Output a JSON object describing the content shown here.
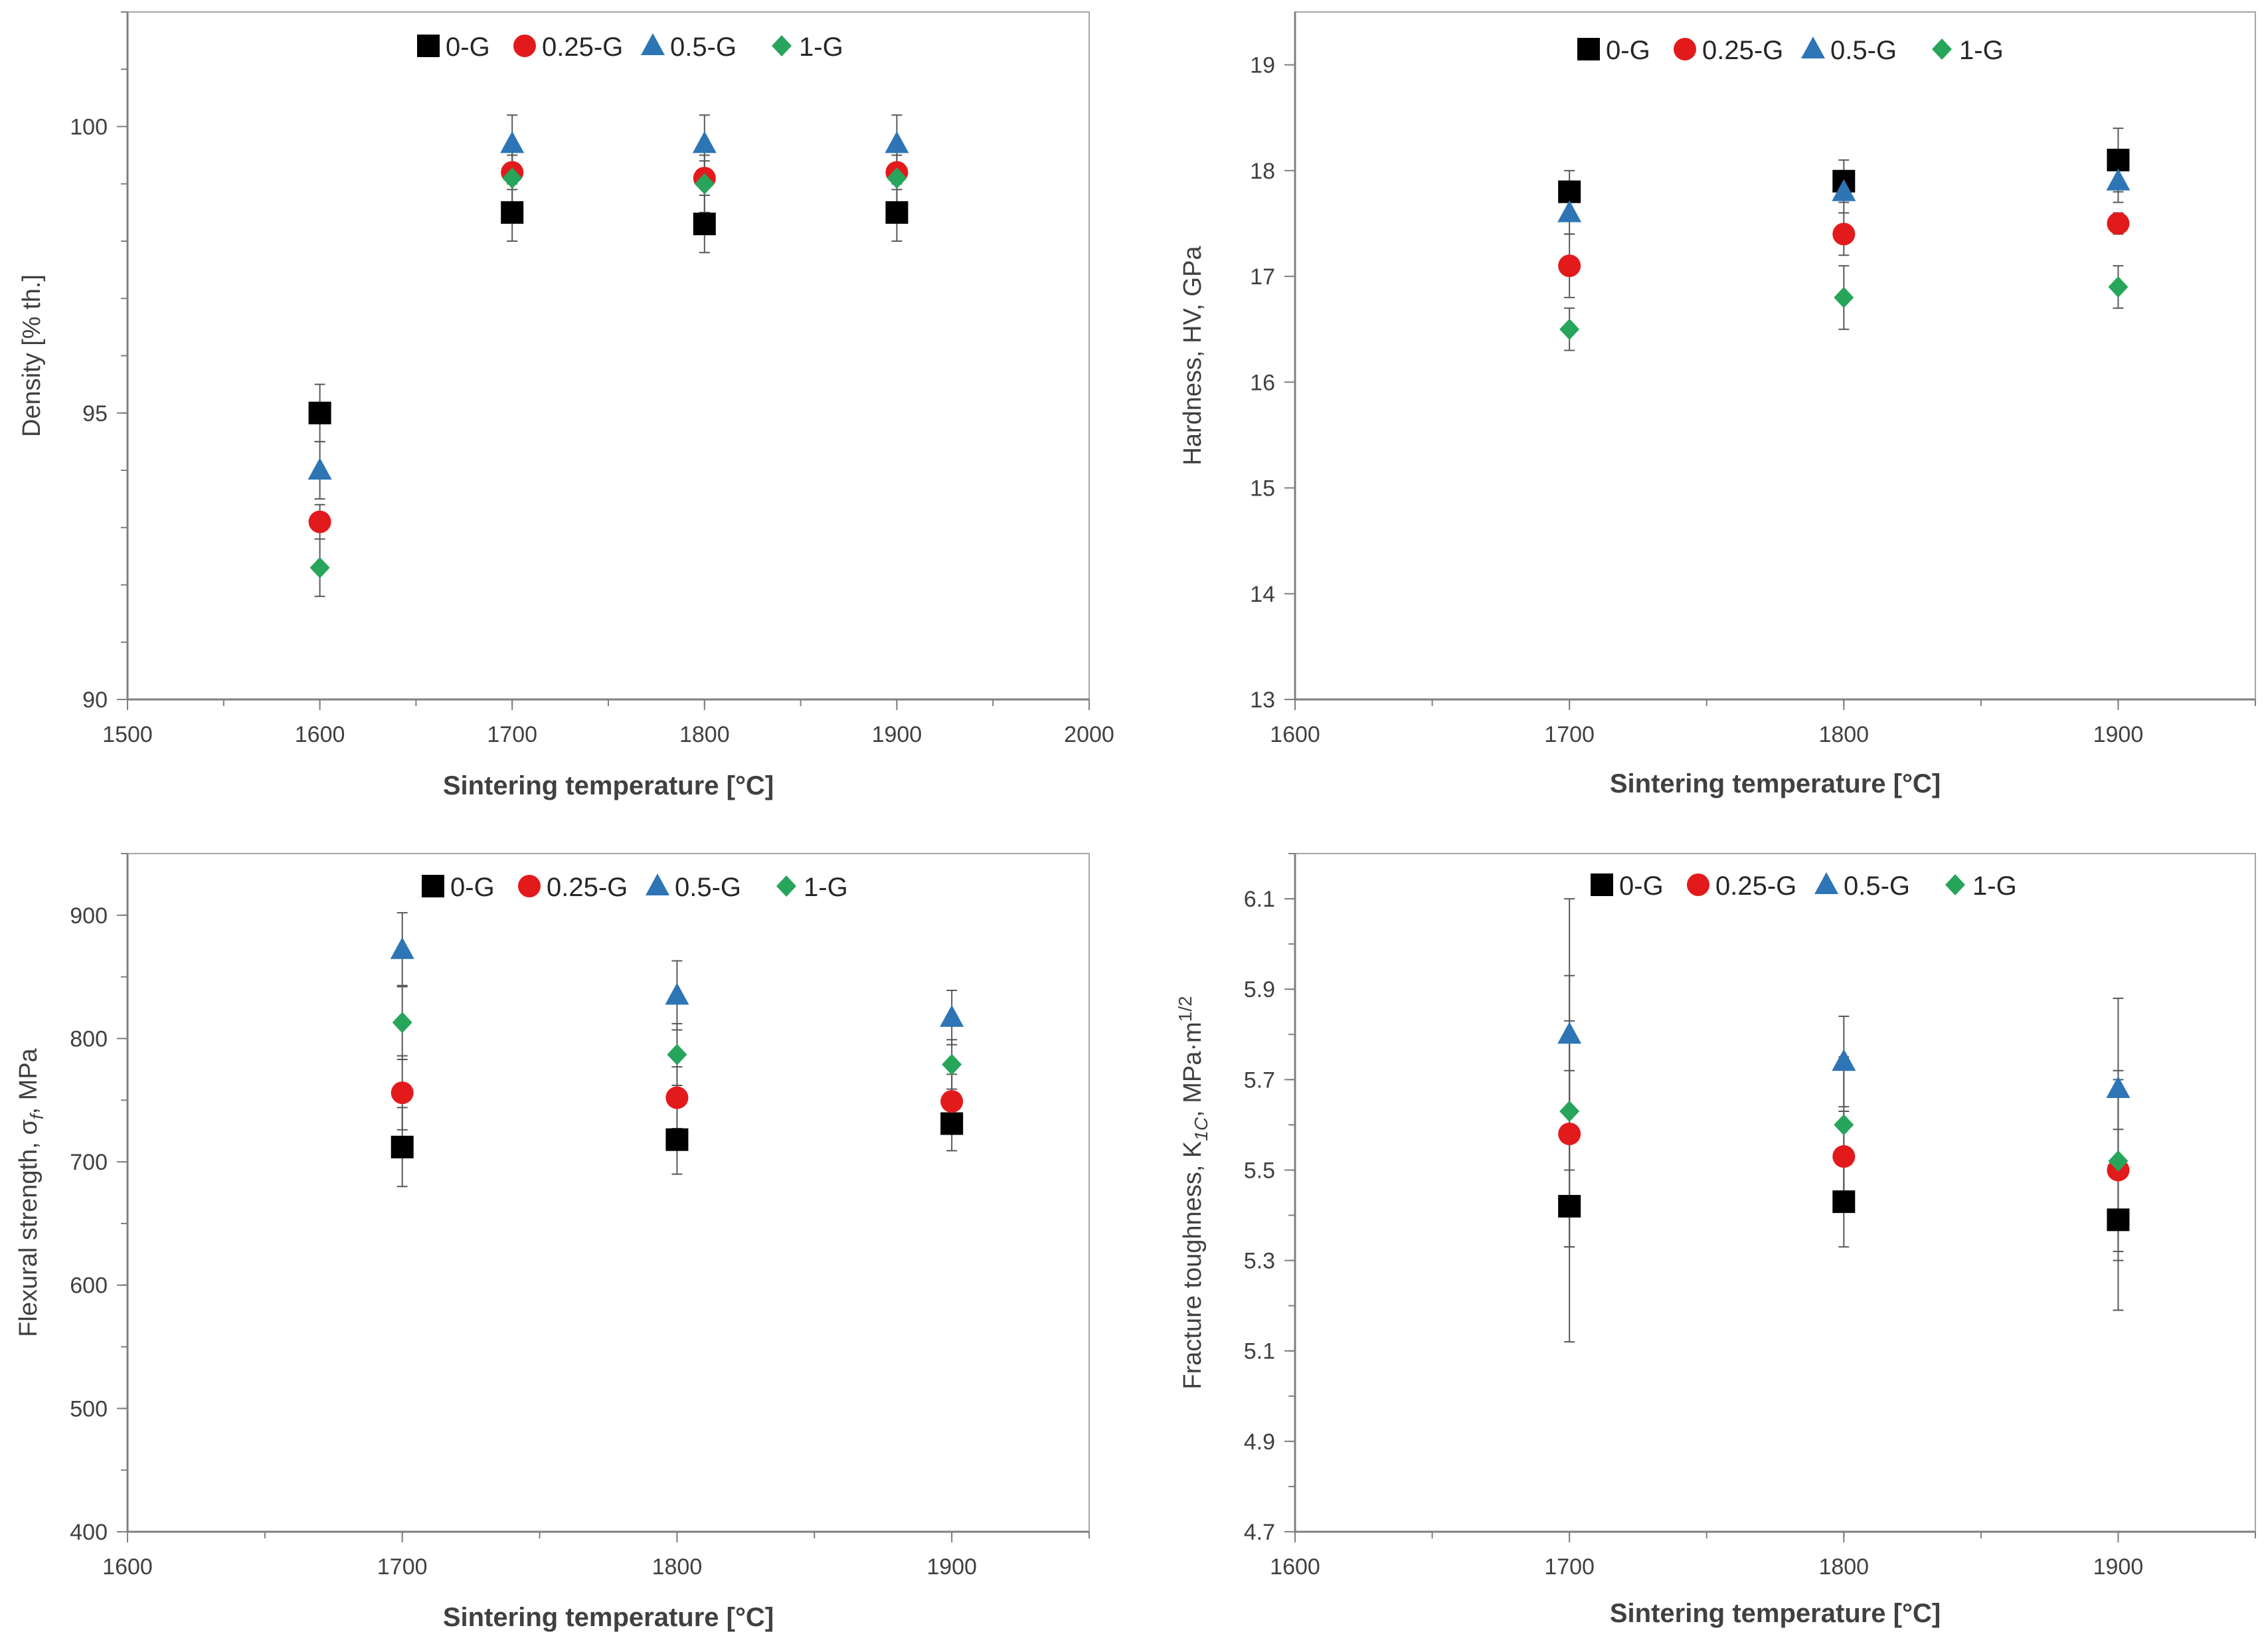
{
  "colors": {
    "0-G": "#000000",
    "0.25-G": "#e31a1c",
    "0.5-G": "#2e75b6",
    "1-G": "#27a55a",
    "axis": "#7f7f7f",
    "error_bar": "#595959"
  },
  "chart_data": [
    {
      "type": "scatter",
      "xlabel": "Sintering temperature [°C]",
      "ylabel": "Density [% th.]",
      "xlim": [
        1500,
        2000
      ],
      "ylim": [
        90,
        102
      ],
      "xticks": [
        1500,
        1600,
        1700,
        1800,
        1900,
        2000
      ],
      "xtick_labels": [
        "1500",
        "1600",
        "1700",
        "1800",
        "1900",
        "2000"
      ],
      "x_minor_step": 50,
      "yticks": [
        90,
        95,
        100
      ],
      "ytick_labels": [
        "90",
        "95",
        "100"
      ],
      "y_minor_step": 1,
      "legend": [
        "0-G",
        "0.25-G",
        "0.5-G",
        "1-G"
      ],
      "legend_position": "top-center",
      "series": [
        {
          "name": "0-G",
          "marker": "square",
          "x": [
            1600,
            1700,
            1800,
            1900
          ],
          "y": [
            95.0,
            98.5,
            98.3,
            98.5
          ],
          "err": [
            0.5,
            0.5,
            0.5,
            0.5
          ]
        },
        {
          "name": "0.25-G",
          "marker": "circle",
          "x": [
            1600,
            1700,
            1800,
            1900
          ],
          "y": [
            93.1,
            99.2,
            99.1,
            99.2
          ],
          "err": [
            0.3,
            0.3,
            0.3,
            0.3
          ]
        },
        {
          "name": "0.5-G",
          "marker": "triangle",
          "x": [
            1600,
            1700,
            1800,
            1900
          ],
          "y": [
            94.0,
            99.7,
            99.7,
            99.7
          ],
          "err": [
            0.5,
            0.5,
            0.5,
            0.5
          ]
        },
        {
          "name": "1-G",
          "marker": "diamond",
          "x": [
            1600,
            1700,
            1800,
            1900
          ],
          "y": [
            92.3,
            99.1,
            99.0,
            99.1
          ],
          "err": [
            0.5,
            0.5,
            0.5,
            0.5
          ]
        }
      ]
    },
    {
      "type": "scatter",
      "xlabel": "Sintering temperature [°C]",
      "ylabel": "Hardness, HV, GPa",
      "xlim": [
        1600,
        1950
      ],
      "ylim": [
        13,
        19.5
      ],
      "xticks": [
        1600,
        1700,
        1800,
        1900
      ],
      "xtick_labels": [
        "1600",
        "1700",
        "1800",
        "1900"
      ],
      "x_minor_step": 50,
      "yticks": [
        13,
        14,
        15,
        16,
        17,
        18,
        19
      ],
      "ytick_labels": [
        "13",
        "14",
        "15",
        "16",
        "17",
        "18",
        "19"
      ],
      "legend": [
        "0-G",
        "0.25-G",
        "0.5-G",
        "1-G"
      ],
      "legend_position": "top-center",
      "series": [
        {
          "name": "0-G",
          "marker": "square",
          "x": [
            1700,
            1800,
            1900
          ],
          "y": [
            17.8,
            17.9,
            18.1
          ],
          "err": [
            0.2,
            0.2,
            0.3
          ]
        },
        {
          "name": "0.25-G",
          "marker": "circle",
          "x": [
            1700,
            1800,
            1900
          ],
          "y": [
            17.1,
            17.4,
            17.5
          ],
          "err": [
            0.3,
            0.2,
            0.1
          ]
        },
        {
          "name": "0.5-G",
          "marker": "triangle",
          "x": [
            1700,
            1800,
            1900
          ],
          "y": [
            17.6,
            17.8,
            17.9
          ],
          "err": [
            0.2,
            0.2,
            0.2
          ]
        },
        {
          "name": "1-G",
          "marker": "diamond",
          "x": [
            1700,
            1800,
            1900
          ],
          "y": [
            16.5,
            16.8,
            16.9
          ],
          "err": [
            0.2,
            0.3,
            0.2
          ]
        }
      ]
    },
    {
      "type": "scatter",
      "xlabel": "Sintering temperature [°C]",
      "ylabel": "Flexural strength, σ",
      "ylabel_sub": "f",
      "ylabel_tail": ", MPa",
      "xlim": [
        1600,
        1950
      ],
      "ylim": [
        400,
        950
      ],
      "xticks": [
        1600,
        1700,
        1800,
        1900
      ],
      "xtick_labels": [
        "1600",
        "1700",
        "1800",
        "1900"
      ],
      "x_minor_step": 50,
      "yticks": [
        400,
        500,
        600,
        700,
        800,
        900
      ],
      "ytick_labels": [
        "400",
        "500",
        "600",
        "700",
        "800",
        "900"
      ],
      "y_minor_step": 50,
      "legend": [
        "0-G",
        "0.25-G",
        "0.5-G",
        "1-G"
      ],
      "legend_position": "top-center",
      "series": [
        {
          "name": "0-G",
          "marker": "square",
          "x": [
            1700,
            1800,
            1900
          ],
          "y": [
            712,
            718,
            731
          ],
          "err": [
            32,
            28,
            22
          ]
        },
        {
          "name": "0.25-G",
          "marker": "circle",
          "x": [
            1700,
            1800,
            1900
          ],
          "y": [
            756,
            752,
            749
          ],
          "err": [
            30,
            25,
            22
          ]
        },
        {
          "name": "0.5-G",
          "marker": "triangle",
          "x": [
            1700,
            1800,
            1900
          ],
          "y": [
            872,
            835,
            817
          ],
          "err": [
            30,
            28,
            22
          ]
        },
        {
          "name": "1-G",
          "marker": "diamond",
          "x": [
            1700,
            1800,
            1900
          ],
          "y": [
            813,
            787,
            779
          ],
          "err": [
            30,
            25,
            20
          ]
        }
      ]
    },
    {
      "type": "scatter",
      "xlabel": "Sintering temperature [°C]",
      "ylabel": "Fracture toughness, K",
      "ylabel_sub": "1C",
      "ylabel_tail": ", MPa·m",
      "ylabel_sup": "1/2",
      "xlim": [
        1600,
        1950
      ],
      "ylim": [
        4.7,
        6.2
      ],
      "xticks": [
        1600,
        1700,
        1800,
        1900
      ],
      "xtick_labels": [
        "1600",
        "1700",
        "1800",
        "1900"
      ],
      "x_minor_step": 50,
      "yticks": [
        4.7,
        4.9,
        5.1,
        5.3,
        5.5,
        5.7,
        5.9,
        6.1
      ],
      "ytick_labels": [
        "4.7",
        "4.9",
        "5.1",
        "5.3",
        "5.5",
        "5.7",
        "5.9",
        "6.1"
      ],
      "y_minor_step": 0.1,
      "legend": [
        "0-G",
        "0.25-G",
        "0.5-G",
        "1-G"
      ],
      "legend_position": "top-center",
      "series": [
        {
          "name": "0-G",
          "marker": "square",
          "x": [
            1700,
            1800,
            1900
          ],
          "y": [
            5.42,
            5.43,
            5.39
          ],
          "err": [
            0.3,
            0.1,
            0.2
          ]
        },
        {
          "name": "0.25-G",
          "marker": "circle",
          "x": [
            1700,
            1800,
            1900
          ],
          "y": [
            5.58,
            5.53,
            5.5
          ],
          "err": [
            0.25,
            0.1,
            0.2
          ]
        },
        {
          "name": "0.5-G",
          "marker": "triangle",
          "x": [
            1700,
            1800,
            1900
          ],
          "y": [
            5.8,
            5.74,
            5.68
          ],
          "err": [
            0.3,
            0.1,
            0.2
          ]
        },
        {
          "name": "1-G",
          "marker": "diamond",
          "x": [
            1700,
            1800,
            1900
          ],
          "y": [
            5.63,
            5.6,
            5.52
          ],
          "err": [
            0.3,
            0.15,
            0.2
          ]
        }
      ]
    }
  ]
}
